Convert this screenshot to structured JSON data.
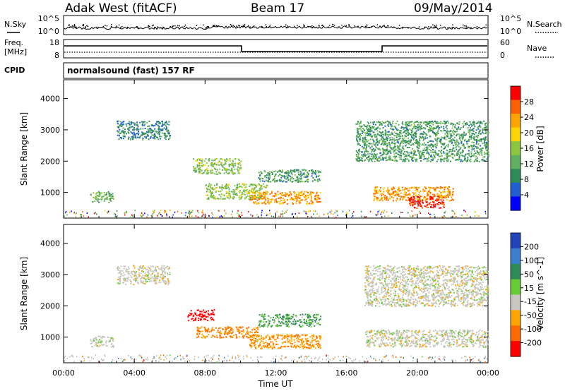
{
  "header": {
    "title": "Adak West (fitACF)",
    "beam": "Beam 17",
    "date": "09/May/2014"
  },
  "side_labels": {
    "nsky": "N.Sky",
    "nsearch": "N.Search",
    "freq_line1": "Freq.",
    "freq_line2": "[MHz]",
    "nave": "Nave",
    "cpid": "CPID"
  },
  "noise_panel": {
    "left_ticks": [
      "10^5",
      "10^0"
    ],
    "right_ticks": [
      "10^5",
      "10^0"
    ]
  },
  "freq_panel": {
    "left_ticks": [
      "18",
      "8"
    ],
    "right_ticks": [
      "60",
      "0"
    ]
  },
  "cpid_text": "normalsound (fast) 157 RF",
  "colors": {
    "power_scale": [
      "#0000ff",
      "#1f5fd0",
      "#2e8b57",
      "#5fb060",
      "#8cc63f",
      "#ffd400",
      "#ffa500",
      "#ff6000",
      "#ff0000"
    ],
    "velocity_scale": [
      "#2244bb",
      "#3a7fd0",
      "#2e8b57",
      "#66cc33",
      "#c8c8c0",
      "#ffa500",
      "#ff6a00",
      "#ff0000"
    ],
    "ground_gray": "#bdbdb4"
  },
  "chart_data": [
    {
      "type": "heatmap",
      "name": "power",
      "xlabel": "Time UT",
      "ylabel": "Slant Range [km]",
      "x_ticks": [
        "00:00",
        "04:00",
        "08:00",
        "12:00",
        "16:00",
        "20:00",
        "00:00"
      ],
      "x_range_hours": [
        0,
        24
      ],
      "y_ticks": [
        1000,
        2000,
        3000,
        4000
      ],
      "ylim": [
        180,
        4600
      ],
      "colorbar": {
        "label": "Power [dB]",
        "ticks": [
          "28",
          "24",
          "20",
          "16",
          "12",
          "8",
          "4"
        ],
        "range": [
          0,
          30
        ]
      },
      "regions": [
        {
          "t": [
            1.5,
            2.8
          ],
          "r": [
            700,
            1050
          ],
          "value": 12
        },
        {
          "t": [
            3.0,
            6.0
          ],
          "r": [
            2700,
            3300
          ],
          "value": 8
        },
        {
          "t": [
            7.3,
            10.0
          ],
          "r": [
            1600,
            2100
          ],
          "value": 14
        },
        {
          "t": [
            8.0,
            11.5
          ],
          "r": [
            800,
            1300
          ],
          "value": 14
        },
        {
          "t": [
            11.0,
            14.5
          ],
          "r": [
            1350,
            1750
          ],
          "value": 10
        },
        {
          "t": [
            10.5,
            14.5
          ],
          "r": [
            650,
            1050
          ],
          "value": 22
        },
        {
          "t": [
            17.5,
            22.0
          ],
          "r": [
            750,
            1200
          ],
          "value": 22
        },
        {
          "t": [
            19.5,
            21.5
          ],
          "r": [
            500,
            900
          ],
          "value": 28
        },
        {
          "t": [
            16.5,
            24.0
          ],
          "r": [
            2000,
            3300
          ],
          "value": 10
        }
      ]
    },
    {
      "type": "heatmap",
      "name": "velocity",
      "xlabel": "Time UT",
      "ylabel": "Slant Range [km]",
      "x_ticks": [
        "00:00",
        "04:00",
        "08:00",
        "12:00",
        "16:00",
        "20:00",
        "00:00"
      ],
      "x_range_hours": [
        0,
        24
      ],
      "y_ticks": [
        1000,
        2000,
        3000,
        4000
      ],
      "ylim": [
        180,
        4600
      ],
      "colorbar": {
        "label": "Velocity [m s^-1]",
        "ticks": [
          "200",
          "100",
          "50",
          "15",
          "-15",
          "-50",
          "-100",
          "-200"
        ],
        "range": [
          -250,
          250
        ]
      },
      "regions": [
        {
          "t": [
            1.5,
            2.8
          ],
          "r": [
            700,
            1050
          ],
          "value": 0
        },
        {
          "t": [
            3.0,
            6.0
          ],
          "r": [
            2700,
            3300
          ],
          "value": 0
        },
        {
          "t": [
            7.0,
            8.5
          ],
          "r": [
            1550,
            1900
          ],
          "value": -200
        },
        {
          "t": [
            7.5,
            11.0
          ],
          "r": [
            1000,
            1350
          ],
          "value": -50
        },
        {
          "t": [
            11.0,
            14.5
          ],
          "r": [
            1350,
            1750
          ],
          "value": 30
        },
        {
          "t": [
            10.5,
            14.5
          ],
          "r": [
            650,
            1100
          ],
          "value": -40
        },
        {
          "t": [
            17.0,
            24.0
          ],
          "r": [
            700,
            1250
          ],
          "value": 0
        },
        {
          "t": [
            17.0,
            24.0
          ],
          "r": [
            2000,
            3300
          ],
          "value": 0
        }
      ]
    }
  ]
}
